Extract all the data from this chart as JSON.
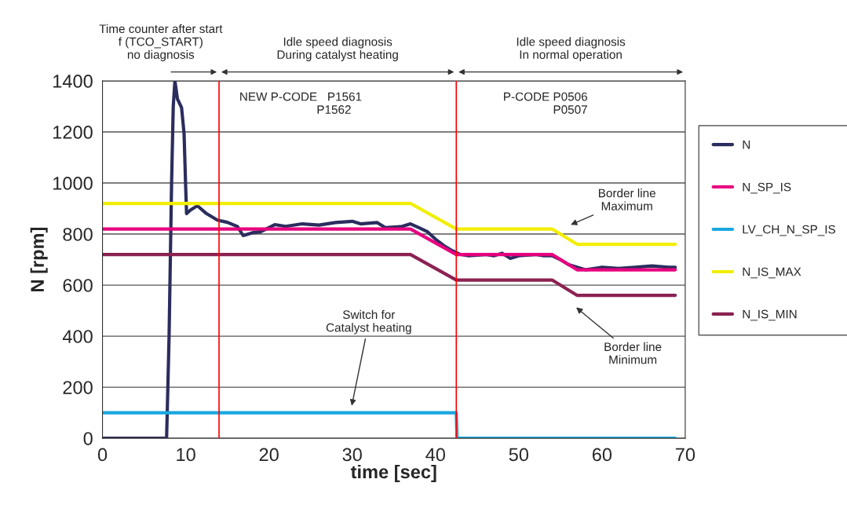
{
  "chart_data": {
    "type": "line",
    "xlabel": "time [sec]",
    "ylabel": "N [rpm]",
    "xlim": [
      0,
      70
    ],
    "ylim": [
      0,
      1400
    ],
    "xticks": [
      0,
      10,
      20,
      30,
      40,
      50,
      60,
      70
    ],
    "yticks": [
      0,
      200,
      400,
      600,
      800,
      1000,
      1200,
      1400
    ],
    "grid": "y",
    "legend": "right",
    "marker": "none",
    "line_style": "solid",
    "series": [
      {
        "name": "N",
        "color": "#2b2d5e",
        "x": [
          0,
          7.7,
          7.8,
          8.0,
          8.3,
          8.5,
          8.7,
          9.0,
          9.5,
          9.8,
          10.0,
          10.1,
          10.6,
          11.4,
          12.5,
          13.8,
          15.0,
          16.2,
          16.9,
          18,
          19,
          20.7,
          22,
          24,
          26,
          28,
          30,
          31,
          33,
          34,
          36,
          37,
          38,
          39,
          40,
          41,
          42,
          43,
          44,
          46,
          47,
          48,
          49,
          50,
          52,
          53,
          54,
          55,
          56,
          57,
          58,
          60,
          62,
          64,
          66,
          68,
          68.8
        ],
        "values": [
          0,
          0,
          130,
          400,
          1000,
          1300,
          1400,
          1330,
          1295,
          1194,
          978,
          880,
          895,
          911,
          880,
          855,
          846,
          830,
          794,
          805,
          809,
          837,
          830,
          840,
          835,
          845,
          850,
          840,
          845,
          825,
          830,
          840,
          825,
          810,
          780,
          755,
          735,
          720,
          715,
          720,
          715,
          725,
          705,
          715,
          720,
          715,
          715,
          700,
          680,
          670,
          660,
          670,
          665,
          670,
          675,
          670,
          670
        ]
      },
      {
        "name": "N_SP_IS",
        "color": "#e8007f",
        "x": [
          0,
          37,
          42.5,
          54,
          57,
          68.8
        ],
        "values": [
          820,
          820,
          720,
          720,
          660,
          660
        ]
      },
      {
        "name": "LV_CH_N_SP_IS",
        "color": "#1aa7e0",
        "x": [
          0,
          42.5,
          42.6,
          68.8
        ],
        "values": [
          100,
          100,
          0,
          0
        ]
      },
      {
        "name": "N_IS_MAX",
        "color": "#f2ee00",
        "x": [
          0,
          37,
          42.5,
          54,
          57,
          68.8
        ],
        "values": [
          920,
          920,
          820,
          820,
          760,
          760
        ]
      },
      {
        "name": "N_IS_MIN",
        "color": "#8b2252",
        "x": [
          0,
          37,
          42.5,
          54,
          57,
          68.8
        ],
        "values": [
          720,
          720,
          620,
          620,
          560,
          560
        ]
      }
    ],
    "ref_lines": [
      {
        "axis": "x",
        "value": 14,
        "color": "#ff0000"
      },
      {
        "axis": "x",
        "value": 42.5,
        "color": "#ff0000"
      }
    ],
    "annotations": [
      "Time counter after start\nf (TCO_START)\nno diagnosis",
      "Idle speed diagnosis\nDuring catalyst heating",
      "Idle speed diagnosis\nIn normal operation",
      "NEW P-CODE   P1561\n                    P1562",
      "P-CODE P0506\n               P0507",
      "Border line\nMaximum",
      "Border line\nMinimum",
      "Switch for\nCatalyst heating"
    ]
  }
}
